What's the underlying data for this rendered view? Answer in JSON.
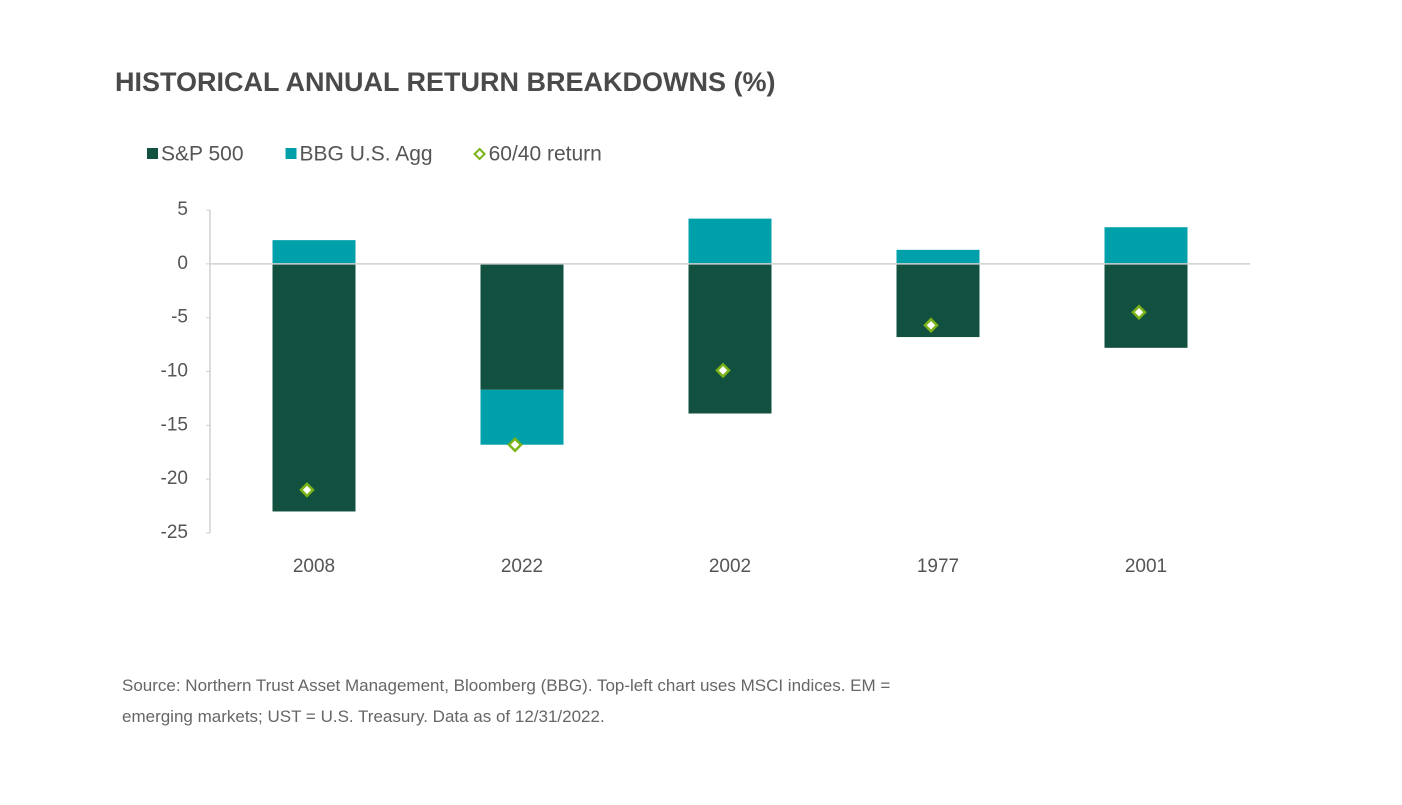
{
  "chart_data": {
    "type": "bar",
    "title": "HISTORICAL ANNUAL RETURN BREAKDOWNS (%)",
    "categories": [
      "2008",
      "2022",
      "2002",
      "1977",
      "2001"
    ],
    "series": [
      {
        "name": "S&P 500",
        "color": "#12503f",
        "values": [
          -23.0,
          -11.7,
          -13.9,
          -6.8,
          -7.8
        ]
      },
      {
        "name": "BBG U.S. Agg",
        "color": "#00a0ab",
        "values": [
          2.2,
          -5.1,
          4.2,
          1.3,
          3.4
        ]
      },
      {
        "name": "60/40 return",
        "color": "#7ab317",
        "type": "marker",
        "values": [
          -21.0,
          -16.8,
          -9.9,
          -5.7,
          -4.5
        ]
      }
    ],
    "stacked": true,
    "ylim": [
      -25,
      5
    ],
    "yticks": [
      5,
      0,
      -5,
      -10,
      -15,
      -20,
      -25
    ],
    "legend": "top-left",
    "source": [
      "Source: Northern Trust Asset Management,  Bloomberg (BBG). Top-left chart uses MSCI indices. EM =",
      "emerging markets;  UST = U.S. Treasury. Data as of 12/31/2022."
    ]
  }
}
